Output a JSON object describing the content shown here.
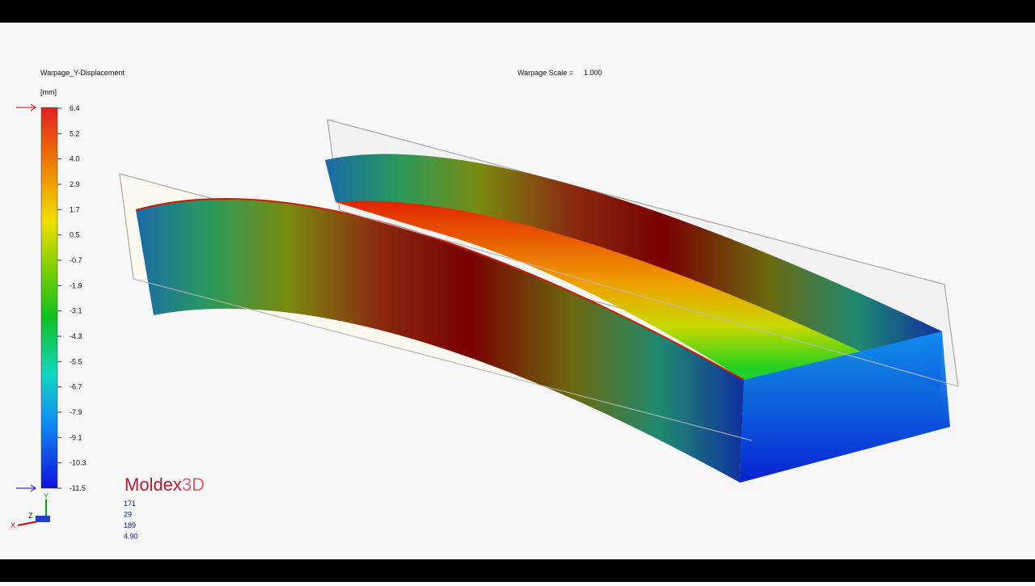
{
  "header": {
    "result_title": "Warpage_Y-Displacement",
    "unit": "[mm]",
    "scale_label": "Warpage Scale =",
    "scale_value": "1.000"
  },
  "legend": {
    "ticks": [
      "6.4",
      "5.2",
      "4.0",
      "2.9",
      "1.7",
      "0.5",
      "-0.7",
      "-1.9",
      "-3.1",
      "-4.3",
      "-5.5",
      "-6.7",
      "-7.9",
      "-9.1",
      "-10.3",
      "-11.5"
    ]
  },
  "logo": {
    "brand": "Moldex",
    "suffix": "3D"
  },
  "info": [
    "171",
    "29",
    "189",
    "4.90"
  ],
  "axes": {
    "y": "Y",
    "z": "Z",
    "x": "X"
  }
}
